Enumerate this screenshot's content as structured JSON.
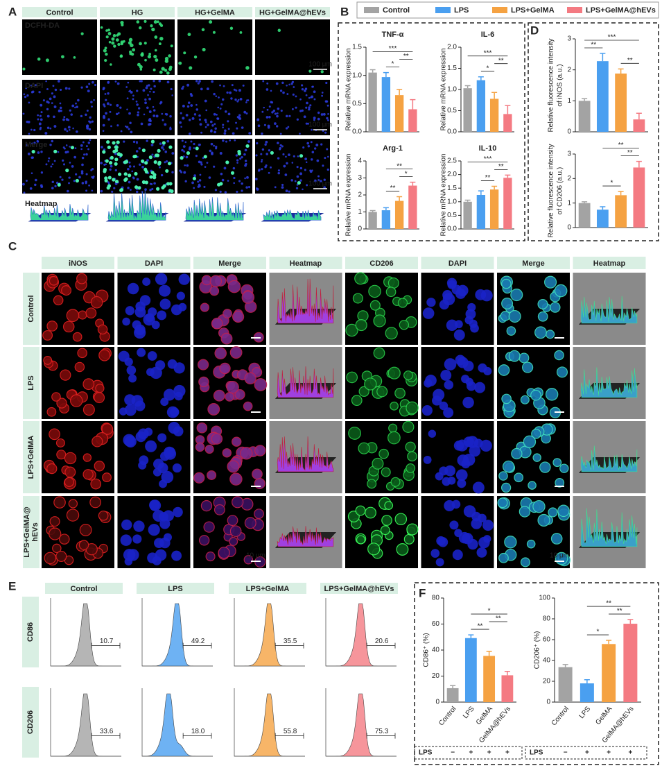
{
  "legend": {
    "names": [
      "Control",
      "LPS",
      "LPS+GelMA",
      "LPS+GelMA@hEVs"
    ],
    "colors": [
      "#a3a3a3",
      "#4a9ff0",
      "#f5a242",
      "#f47a82"
    ]
  },
  "panel_labels": [
    "A",
    "B",
    "C",
    "D",
    "E",
    "F"
  ],
  "panel_a": {
    "columns": [
      "Control",
      "HG",
      "HG+GelMA",
      "HG+GelMA@hEVs"
    ],
    "rows": [
      "DCFH-DA",
      "DAPI",
      "Merge",
      "Heatmap"
    ],
    "scale_bar": "100 μm"
  },
  "panel_c": {
    "columns": [
      "iNOS",
      "DAPI",
      "Merge",
      "Heatmap",
      "CD206",
      "DAPI",
      "Merge",
      "Heatmap"
    ],
    "rows": [
      [
        "Control"
      ],
      [
        "LPS"
      ],
      [
        "LPS+GelMA"
      ],
      [
        "LPS+GelMA@",
        "hEVs"
      ]
    ],
    "scale_bar": "10 μm"
  },
  "panel_e": {
    "columns": [
      "Control",
      "LPS",
      "LPS+GelMA",
      "LPS+GelMA@hEVs"
    ],
    "rows": [
      "CD86",
      "CD206"
    ],
    "gates": [
      [
        "10.7",
        "49.2",
        "35.5",
        "20.6"
      ],
      [
        "33.6",
        "18.0",
        "55.8",
        "75.3"
      ]
    ]
  },
  "chart_data": [
    {
      "type": "bar",
      "title": "TNF-α",
      "ylabel": [
        "Relative mRNA expression"
      ],
      "values": [
        1.05,
        0.97,
        0.65,
        0.4
      ],
      "errors": [
        0.05,
        0.08,
        0.1,
        0.17
      ],
      "ylim": [
        0,
        1.5
      ],
      "yticks": [
        {
          "value": 0,
          "label": "0.0"
        },
        0.5,
        {
          "value": 1,
          "label": "1.0"
        },
        1.5
      ],
      "comparisons": [
        {
          "pair": [
            1,
            2
          ],
          "label": "*"
        },
        {
          "pair": [
            2,
            3
          ],
          "label": "**"
        },
        {
          "pair": [
            0,
            3
          ],
          "label": "***"
        }
      ]
    },
    {
      "type": "bar",
      "title": "IL-6",
      "ylabel": [
        "Relative mRNA expression"
      ],
      "values": [
        1.03,
        1.22,
        0.78,
        0.42
      ],
      "errors": [
        0.06,
        0.08,
        0.15,
        0.2
      ],
      "ylim": [
        0,
        2
      ],
      "yticks": [
        {
          "value": 0,
          "label": "0.0"
        },
        0.5,
        {
          "value": 1,
          "label": "1.0"
        },
        1.5,
        {
          "value": 2,
          "label": "2.0"
        }
      ],
      "comparisons": [
        {
          "pair": [
            1,
            2
          ],
          "label": "*"
        },
        {
          "pair": [
            2,
            3
          ],
          "label": "**"
        },
        {
          "pair": [
            0,
            3
          ],
          "label": "***"
        }
      ]
    },
    {
      "type": "bar",
      "title": "Arg-1",
      "ylabel": [
        "Relative mRNA expression"
      ],
      "values": [
        1.0,
        1.1,
        1.65,
        2.55
      ],
      "errors": [
        0.08,
        0.15,
        0.25,
        0.2
      ],
      "ylim": [
        0,
        4
      ],
      "yticks": [
        0,
        1,
        2,
        3,
        4
      ],
      "comparisons": [
        {
          "pair": [
            1,
            2
          ],
          "label": "**"
        },
        {
          "pair": [
            2,
            3
          ],
          "label": "*"
        },
        {
          "pair": [
            1,
            3
          ],
          "label": "**"
        }
      ]
    },
    {
      "type": "bar",
      "title": "IL-10",
      "ylabel": [
        "Relative mRNA expression"
      ],
      "values": [
        1.0,
        1.25,
        1.45,
        1.88
      ],
      "errors": [
        0.06,
        0.15,
        0.12,
        0.1
      ],
      "ylim": [
        0,
        2.5
      ],
      "yticks": [
        {
          "value": 0,
          "label": "0.0"
        },
        0.5,
        {
          "value": 1,
          "label": "1.0"
        },
        1.5,
        {
          "value": 2,
          "label": "2.0"
        },
        2.5
      ],
      "comparisons": [
        {
          "pair": [
            1,
            2
          ],
          "label": "**"
        },
        {
          "pair": [
            2,
            3
          ],
          "label": "**"
        },
        {
          "pair": [
            0,
            3
          ],
          "label": "***"
        }
      ]
    },
    {
      "type": "bar",
      "ylabel": [
        "Relative fluorescence intensity",
        "of iNOS (a.u.)"
      ],
      "values": [
        1.0,
        2.28,
        1.88,
        0.4
      ],
      "errors": [
        0.07,
        0.25,
        0.15,
        0.2
      ],
      "ylim": [
        0,
        3
      ],
      "yticks": [
        0,
        1,
        2,
        3
      ],
      "comparisons": [
        {
          "pair": [
            0,
            1
          ],
          "label": "**"
        },
        {
          "pair": [
            2,
            3
          ],
          "label": "**"
        },
        {
          "pair": [
            0,
            3
          ],
          "label": "***"
        }
      ]
    },
    {
      "type": "bar",
      "ylabel": [
        "Relative fluorescence intensity",
        "of CD206 (a.u.)"
      ],
      "values": [
        1.0,
        0.73,
        1.32,
        2.45
      ],
      "errors": [
        0.05,
        0.12,
        0.15,
        0.25
      ],
      "ylim": [
        0,
        3
      ],
      "yticks": [
        0,
        1,
        2,
        3
      ],
      "comparisons": [
        {
          "pair": [
            1,
            2
          ],
          "label": "*"
        },
        {
          "pair": [
            2,
            3
          ],
          "label": "**"
        },
        {
          "pair": [
            1,
            3
          ],
          "label": "**"
        }
      ]
    },
    {
      "type": "bar",
      "ylabel": [
        "CD86⁺ (%)"
      ],
      "categories": [
        "Control",
        "LPS",
        "GelMA",
        "GelMA@hEVs"
      ],
      "values": [
        10.7,
        49.2,
        35.5,
        20.6
      ],
      "errors": [
        2,
        2.5,
        3.5,
        3
      ],
      "ylim": [
        0,
        80
      ],
      "yticks": [
        0,
        20,
        40,
        60,
        80
      ],
      "comparisons": [
        {
          "pair": [
            1,
            2
          ],
          "label": "**"
        },
        {
          "pair": [
            2,
            3
          ],
          "label": "**"
        },
        {
          "pair": [
            1,
            3
          ],
          "label": "*"
        }
      ],
      "lps_label": "LPS",
      "lps": [
        "−",
        "+",
        "+",
        "+"
      ]
    },
    {
      "type": "bar",
      "ylabel": [
        "CD206⁺ (%)"
      ],
      "categories": [
        "Control",
        "LPS",
        "GelMA",
        "GelMA@hEVs"
      ],
      "values": [
        33.6,
        18.0,
        55.8,
        75.3
      ],
      "errors": [
        2.5,
        3.5,
        3.5,
        4
      ],
      "ylim": [
        0,
        100
      ],
      "yticks": [
        0,
        20,
        40,
        60,
        80,
        100
      ],
      "comparisons": [
        {
          "pair": [
            1,
            2
          ],
          "label": "*"
        },
        {
          "pair": [
            2,
            3
          ],
          "label": "**"
        },
        {
          "pair": [
            1,
            3
          ],
          "label": "**"
        }
      ],
      "lps_label": "LPS",
      "lps": [
        "−",
        "+",
        "+",
        "+"
      ]
    }
  ]
}
